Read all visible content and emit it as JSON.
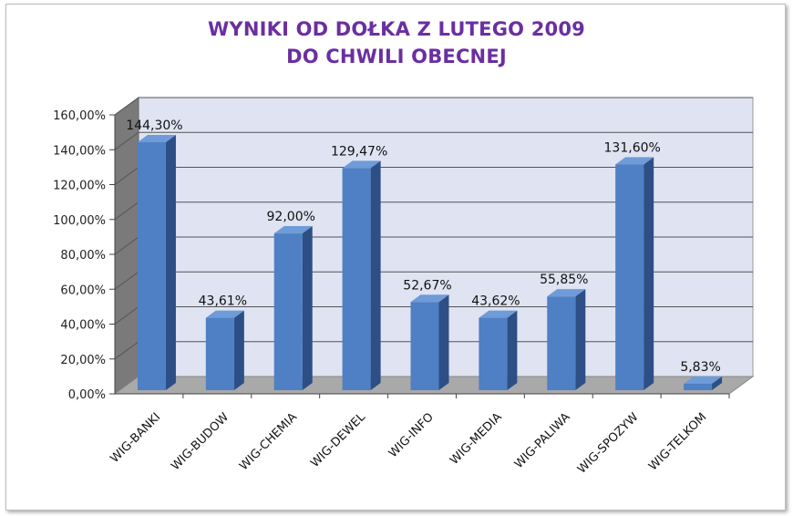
{
  "chart_data": {
    "type": "bar",
    "title": "WYNIKI OD DOŁKA Z LUTEGO 2009",
    "subtitle": "DO CHWILI OBECNEJ",
    "categories": [
      "WIG-BANKI",
      "WIG-BUDOW",
      "WIG-CHEMIA",
      "WIG-DEWEL",
      "WIG-INFO",
      "WIG-MEDIA",
      "WIG-PALIWA",
      "WIG-SPOZYW",
      "WIG-TELKOM"
    ],
    "values": [
      144.3,
      43.61,
      92.0,
      129.47,
      52.67,
      43.62,
      55.85,
      131.6,
      5.83
    ],
    "data_labels": [
      "144,30%",
      "43,61%",
      "92,00%",
      "129,47%",
      "52,67%",
      "43,62%",
      "55,85%",
      "131,60%",
      "5,83%"
    ],
    "y_ticks": [
      0,
      20,
      40,
      60,
      80,
      100,
      120,
      140,
      160
    ],
    "y_tick_labels": [
      "0,00%",
      "20,00%",
      "40,00%",
      "60,00%",
      "80,00%",
      "100,00%",
      "120,00%",
      "140,00%",
      "160,00%"
    ],
    "ylim": [
      0,
      160
    ],
    "grid": true,
    "xlabel": "",
    "ylabel": "",
    "colors": {
      "bar_front": "#4f7fc4",
      "bar_side": "#2d4f86",
      "bar_top": "#6f9bd8",
      "back_wall": "#dfe3f2",
      "left_wall": "#7a7a7a",
      "floor": "#a9a9a9",
      "title": "#6a2fa0"
    }
  }
}
